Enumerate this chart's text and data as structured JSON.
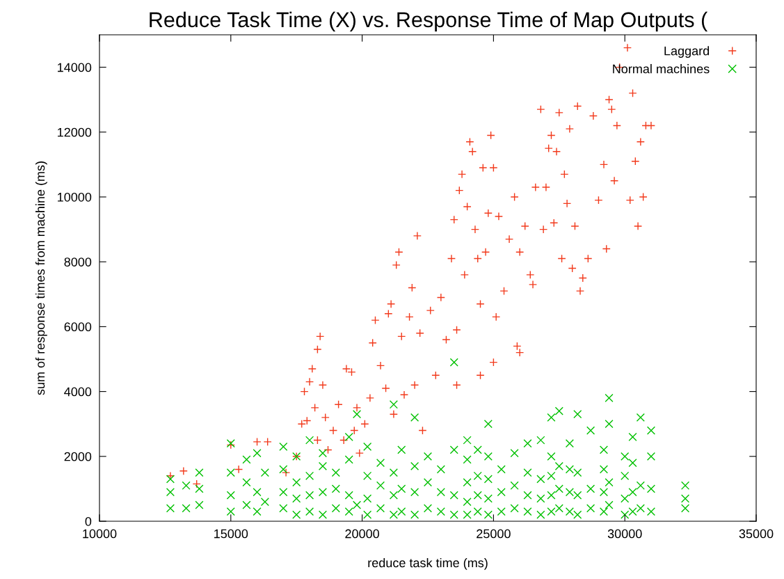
{
  "chart_data": {
    "type": "scatter",
    "title": "Reduce Task Time (X) vs. Response Time of Map Outputs (",
    "xlabel": "reduce task time (ms)",
    "ylabel": "sum of response times from machine (ms)",
    "xlim": [
      10000,
      35000
    ],
    "xticks": [
      10000,
      15000,
      20000,
      25000,
      30000,
      35000
    ],
    "ylim": [
      0,
      15000
    ],
    "yticks": [
      0,
      2000,
      4000,
      6000,
      8000,
      10000,
      12000,
      14000
    ],
    "grid": false,
    "legend": "top right",
    "series": [
      {
        "name": "Laggard",
        "color": "#f23a1c",
        "marker": "plus",
        "x": [
          12700,
          13200,
          13700,
          15000,
          15300,
          16000,
          16400,
          17100,
          17500,
          17700,
          17800,
          17900,
          18000,
          18100,
          18200,
          18300,
          18400,
          18300,
          18500,
          18600,
          18700,
          18900,
          19100,
          19300,
          19400,
          19600,
          19700,
          19800,
          19900,
          20100,
          20300,
          20400,
          20500,
          20700,
          20900,
          21000,
          21100,
          21200,
          21300,
          21400,
          21500,
          21600,
          21800,
          21900,
          22000,
          22100,
          22200,
          22300,
          22600,
          22800,
          23000,
          23200,
          23400,
          23500,
          23600,
          23600,
          23700,
          23800,
          23900,
          24000,
          24100,
          24200,
          24300,
          24400,
          24500,
          24500,
          24600,
          24700,
          24800,
          24900,
          25000,
          25000,
          25100,
          25200,
          25400,
          25600,
          25800,
          25900,
          26000,
          26000,
          26200,
          26400,
          26500,
          26600,
          26800,
          26900,
          27000,
          27100,
          27200,
          27300,
          27400,
          27500,
          27600,
          27700,
          27800,
          27900,
          28000,
          28100,
          28200,
          28300,
          28400,
          28600,
          28800,
          29000,
          29200,
          29300,
          29400,
          29500,
          29600,
          29700,
          29800,
          30100,
          30200,
          30300,
          30400,
          30500,
          30600,
          30700,
          30800,
          31000
        ],
        "values": [
          1400,
          1550,
          1150,
          2350,
          1600,
          2450,
          2450,
          1500,
          2000,
          3000,
          4000,
          3100,
          4300,
          4700,
          3500,
          2500,
          5700,
          5300,
          4200,
          3200,
          2200,
          2800,
          3600,
          2500,
          4700,
          4600,
          2800,
          3500,
          2100,
          3000,
          3800,
          5500,
          6200,
          4800,
          4100,
          6400,
          6700,
          3300,
          7900,
          8300,
          5700,
          3900,
          6300,
          7200,
          4200,
          8800,
          5800,
          2800,
          6500,
          4500,
          6900,
          5600,
          8100,
          9300,
          5900,
          4200,
          10200,
          10700,
          7600,
          9700,
          11700,
          11400,
          9000,
          8100,
          6700,
          4500,
          10900,
          8300,
          9500,
          11900,
          4900,
          10900,
          6300,
          9400,
          7100,
          8700,
          10000,
          5400,
          5200,
          8300,
          9100,
          7600,
          7300,
          10300,
          12700,
          9000,
          10300,
          11500,
          11900,
          9200,
          11400,
          12600,
          8100,
          10700,
          9800,
          12100,
          7800,
          9100,
          12800,
          7100,
          7500,
          8100,
          12500,
          9900,
          11000,
          8400,
          13000,
          12700,
          10500,
          12200,
          14000,
          14600,
          9900,
          13200,
          11100,
          9100,
          11700,
          10000,
          12200,
          12200
        ]
      },
      {
        "name": "Normal machines",
        "color": "#00c000",
        "marker": "cross",
        "x": [
          12700,
          12700,
          12700,
          13300,
          13300,
          13800,
          13800,
          13800,
          15000,
          15000,
          15000,
          15000,
          15600,
          15600,
          15600,
          16000,
          16000,
          16000,
          16300,
          16300,
          17000,
          17000,
          17000,
          17000,
          17500,
          17500,
          17500,
          17500,
          18000,
          18000,
          18000,
          18000,
          18500,
          18500,
          18500,
          18500,
          19000,
          19000,
          19000,
          19500,
          19500,
          19500,
          19500,
          19800,
          19800,
          20200,
          20200,
          20200,
          20200,
          20700,
          20700,
          20700,
          21200,
          21200,
          21200,
          21200,
          21500,
          21500,
          21500,
          22000,
          22000,
          22000,
          22000,
          22500,
          22500,
          22500,
          23000,
          23000,
          23000,
          23500,
          23500,
          23500,
          23500,
          24000,
          24000,
          24000,
          24000,
          24000,
          24400,
          24400,
          24400,
          24400,
          24800,
          24800,
          24800,
          24800,
          24800,
          25300,
          25300,
          25300,
          25800,
          25800,
          25800,
          26300,
          26300,
          26300,
          26300,
          26800,
          26800,
          26800,
          26800,
          27200,
          27200,
          27200,
          27200,
          27200,
          27500,
          27500,
          27500,
          27500,
          27900,
          27900,
          27900,
          27900,
          28200,
          28200,
          28200,
          28200,
          28700,
          28700,
          28700,
          29200,
          29200,
          29200,
          29200,
          29400,
          29400,
          29400,
          29400,
          30000,
          30000,
          30000,
          30000,
          30300,
          30300,
          30300,
          30300,
          30600,
          30600,
          30600,
          31000,
          31000,
          31000,
          31000,
          32300,
          32300,
          32300
        ],
        "values": [
          400,
          900,
          1300,
          400,
          1100,
          500,
          1000,
          1500,
          300,
          800,
          1500,
          2400,
          500,
          1200,
          1900,
          300,
          900,
          2100,
          600,
          1500,
          400,
          900,
          1600,
          2300,
          200,
          700,
          1200,
          2000,
          300,
          800,
          1400,
          2500,
          200,
          900,
          1700,
          2100,
          400,
          1000,
          1500,
          300,
          800,
          1900,
          2600,
          500,
          3300,
          200,
          700,
          1400,
          2300,
          400,
          1100,
          1800,
          200,
          800,
          1500,
          3600,
          300,
          1000,
          2200,
          200,
          900,
          1700,
          3200,
          400,
          1200,
          2000,
          300,
          900,
          1600,
          200,
          800,
          2200,
          4900,
          200,
          600,
          1200,
          1900,
          2500,
          300,
          800,
          1400,
          2200,
          200,
          700,
          1300,
          2000,
          3000,
          300,
          900,
          1600,
          400,
          1100,
          2100,
          300,
          800,
          1500,
          2400,
          200,
          700,
          1300,
          2500,
          300,
          800,
          1400,
          2000,
          3200,
          400,
          1000,
          1700,
          3400,
          300,
          900,
          1600,
          2400,
          200,
          800,
          1500,
          3300,
          400,
          1000,
          2800,
          300,
          900,
          1600,
          2200,
          500,
          1200,
          3800,
          3000,
          200,
          700,
          1400,
          2000,
          300,
          900,
          1800,
          2600,
          400,
          1100,
          3200,
          300,
          1000,
          2000,
          2800,
          400,
          700,
          1100
        ]
      }
    ]
  }
}
